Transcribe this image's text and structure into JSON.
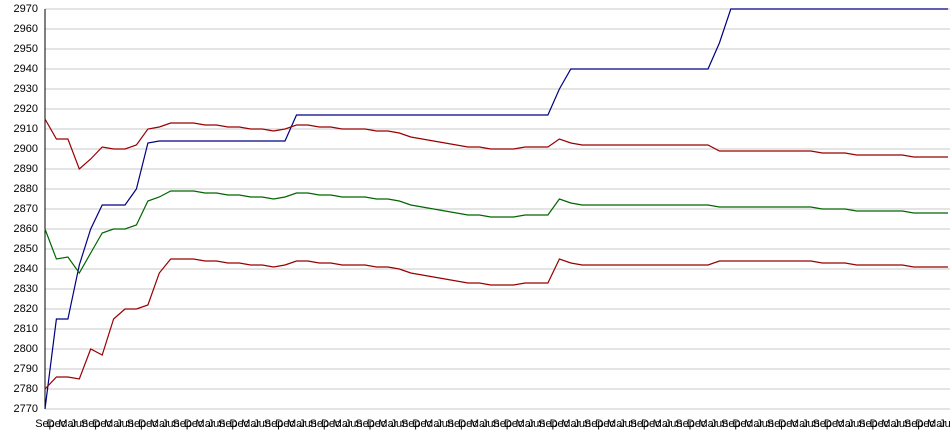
{
  "chart_data": {
    "type": "line",
    "categories": [
      "Sep",
      "Dec",
      "Mar",
      "Jun",
      "Sep",
      "Dec",
      "Mar",
      "Jun",
      "Sep",
      "Dec",
      "Mar",
      "Jun",
      "Sep",
      "Dec",
      "Mar",
      "Jun",
      "Sep",
      "Dec",
      "Mar",
      "Jun",
      "Sep",
      "Dec",
      "Mar",
      "Jun",
      "Sep",
      "Dec",
      "Mar",
      "Jun",
      "Sep",
      "Dec",
      "Mar",
      "Jun",
      "Sep",
      "Dec",
      "Mar",
      "Jun",
      "Sep",
      "Dec",
      "Mar",
      "Jun",
      "Sep",
      "Dec",
      "Mar",
      "Jun",
      "Sep",
      "Dec",
      "Mar",
      "Jun",
      "Sep",
      "Dec",
      "Mar",
      "Jun",
      "Sep",
      "Dec",
      "Mar",
      "Jun",
      "Sep",
      "Dec",
      "Mar",
      "Jun",
      "Sep",
      "Dec",
      "Mar",
      "Jun",
      "Sep",
      "Dec",
      "Mar",
      "Jun",
      "Sep",
      "Dec",
      "Mar",
      "Jun",
      "Sep",
      "Dec",
      "Mar",
      "Jun",
      "Sep",
      "Dec",
      "Mar",
      "Jun"
    ],
    "series": [
      {
        "color": "#000080",
        "values": [
          2770,
          2815,
          2815,
          2842,
          2860,
          2872,
          2872,
          2872,
          2880,
          2903,
          2904,
          2904,
          2904,
          2904,
          2904,
          2904,
          2904,
          2904,
          2904,
          2904,
          2904,
          2904,
          2917,
          2917,
          2917,
          2917,
          2917,
          2917,
          2917,
          2917,
          2917,
          2917,
          2917,
          2917,
          2917,
          2917,
          2917,
          2917,
          2917,
          2917,
          2917,
          2917,
          2917,
          2917,
          2917,
          2930,
          2940,
          2940,
          2940,
          2940,
          2940,
          2940,
          2940,
          2940,
          2940,
          2940,
          2940,
          2940,
          2940,
          2953,
          2970,
          2970,
          2970,
          2970,
          2970,
          2970,
          2970,
          2970,
          2970,
          2970,
          2970,
          2970,
          2970,
          2970,
          2970,
          2970,
          2970,
          2970,
          2970,
          2970
        ]
      },
      {
        "color": "#990000",
        "values": [
          2915,
          2905,
          2905,
          2890,
          2895,
          2901,
          2900,
          2900,
          2902,
          2910,
          2911,
          2913,
          2913,
          2913,
          2912,
          2912,
          2911,
          2911,
          2910,
          2910,
          2909,
          2910,
          2912,
          2912,
          2911,
          2911,
          2910,
          2910,
          2910,
          2909,
          2909,
          2908,
          2906,
          2905,
          2904,
          2903,
          2902,
          2901,
          2901,
          2900,
          2900,
          2900,
          2901,
          2901,
          2901,
          2905,
          2903,
          2902,
          2902,
          2902,
          2902,
          2902,
          2902,
          2902,
          2902,
          2902,
          2902,
          2902,
          2902,
          2899,
          2899,
          2899,
          2899,
          2899,
          2899,
          2899,
          2899,
          2899,
          2898,
          2898,
          2898,
          2897,
          2897,
          2897,
          2897,
          2897,
          2896,
          2896,
          2896,
          2896
        ]
      },
      {
        "color": "#006600",
        "values": [
          2860,
          2845,
          2846,
          2838,
          2848,
          2858,
          2860,
          2860,
          2862,
          2874,
          2876,
          2879,
          2879,
          2879,
          2878,
          2878,
          2877,
          2877,
          2876,
          2876,
          2875,
          2876,
          2878,
          2878,
          2877,
          2877,
          2876,
          2876,
          2876,
          2875,
          2875,
          2874,
          2872,
          2871,
          2870,
          2869,
          2868,
          2867,
          2867,
          2866,
          2866,
          2866,
          2867,
          2867,
          2867,
          2875,
          2873,
          2872,
          2872,
          2872,
          2872,
          2872,
          2872,
          2872,
          2872,
          2872,
          2872,
          2872,
          2872,
          2871,
          2871,
          2871,
          2871,
          2871,
          2871,
          2871,
          2871,
          2871,
          2870,
          2870,
          2870,
          2869,
          2869,
          2869,
          2869,
          2869,
          2868,
          2868,
          2868,
          2868
        ]
      },
      {
        "color": "#990000",
        "values": [
          2780,
          2786,
          2786,
          2785,
          2800,
          2797,
          2815,
          2820,
          2820,
          2822,
          2838,
          2845,
          2845,
          2845,
          2844,
          2844,
          2843,
          2843,
          2842,
          2842,
          2841,
          2842,
          2844,
          2844,
          2843,
          2843,
          2842,
          2842,
          2842,
          2841,
          2841,
          2840,
          2838,
          2837,
          2836,
          2835,
          2834,
          2833,
          2833,
          2832,
          2832,
          2832,
          2833,
          2833,
          2833,
          2845,
          2843,
          2842,
          2842,
          2842,
          2842,
          2842,
          2842,
          2842,
          2842,
          2842,
          2842,
          2842,
          2842,
          2844,
          2844,
          2844,
          2844,
          2844,
          2844,
          2844,
          2844,
          2844,
          2843,
          2843,
          2843,
          2842,
          2842,
          2842,
          2842,
          2842,
          2841,
          2841,
          2841,
          2841
        ]
      }
    ],
    "ylim": [
      2770,
      2970
    ],
    "yticks": [
      2770,
      2780,
      2790,
      2800,
      2810,
      2820,
      2830,
      2840,
      2850,
      2860,
      2870,
      2880,
      2890,
      2900,
      2910,
      2920,
      2930,
      2940,
      2950,
      2960,
      2970
    ],
    "grid": true
  }
}
